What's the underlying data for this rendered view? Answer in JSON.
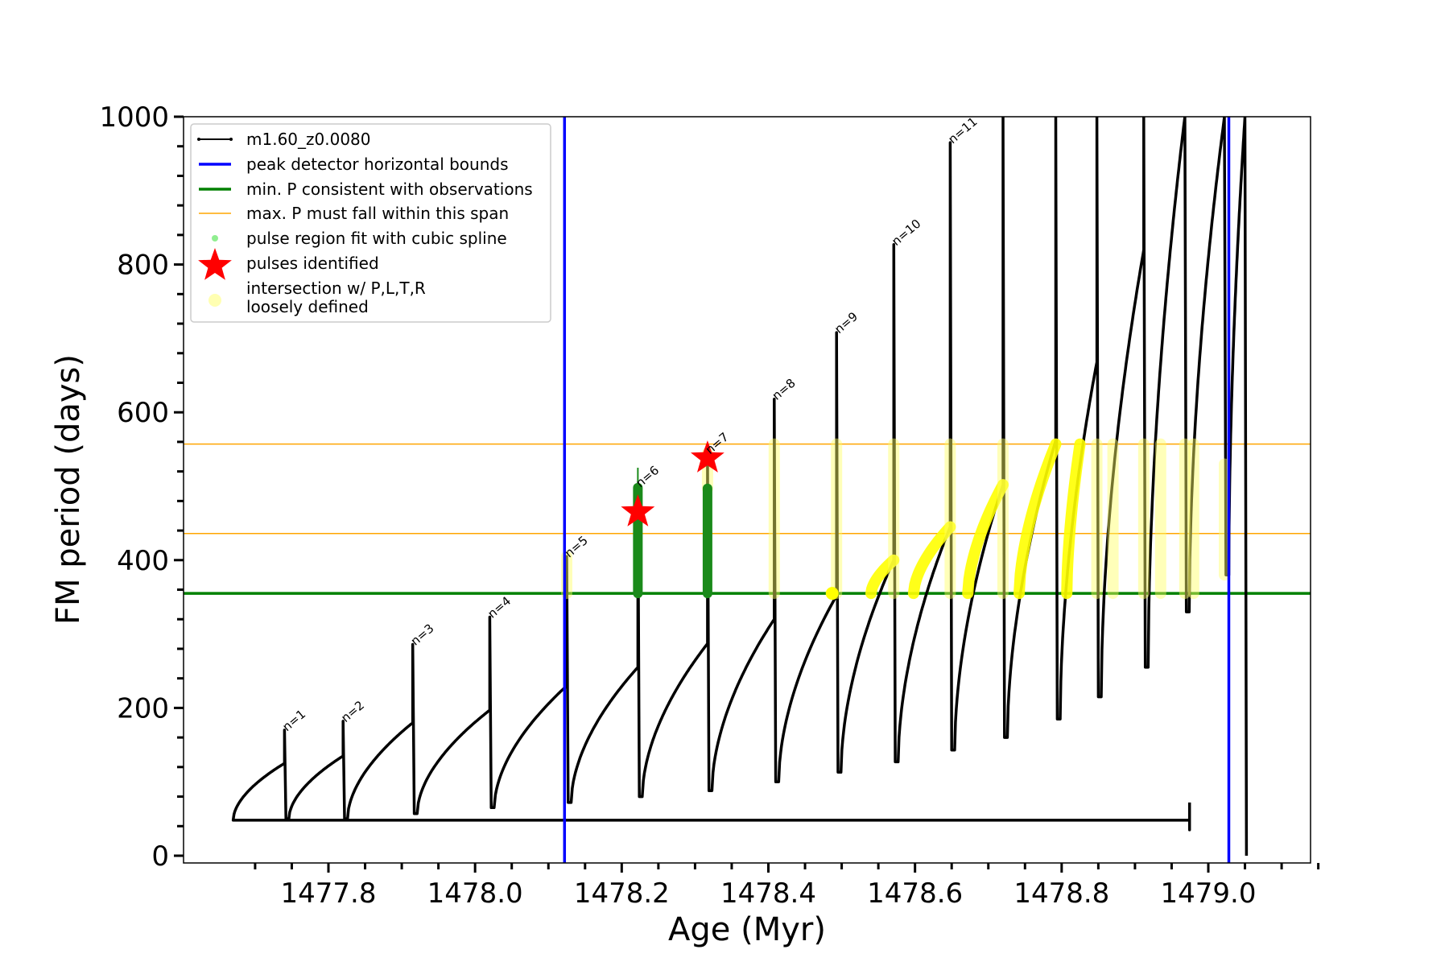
{
  "chart_data": {
    "type": "line",
    "xlabel": "Age (Myr)",
    "ylabel": "FM period (days)",
    "xlim": [
      1477.6,
      1479.12
    ],
    "ylim": [
      0,
      1000
    ],
    "xticks": [
      1477.8,
      1478.0,
      1478.2,
      1478.4,
      1478.6,
      1478.8,
      1479.0
    ],
    "xtick_labels": [
      "1477.8",
      "1478.0",
      "1478.2",
      "1478.4",
      "1478.6",
      "1478.8",
      "1479.0"
    ],
    "yticks": [
      0,
      200,
      400,
      600,
      800,
      1000
    ],
    "ytick_labels": [
      "0",
      "200",
      "400",
      "600",
      "800",
      "1000"
    ],
    "grid": false,
    "legend_position": "upper-left",
    "legend": [
      {
        "label": "m1.60_z0.0080",
        "kind": "line-marker",
        "color": "#000000"
      },
      {
        "label": "peak detector horizontal bounds",
        "kind": "line",
        "color": "#0000ff"
      },
      {
        "label": "min. P consistent with observations",
        "kind": "line",
        "color": "#008000"
      },
      {
        "label": "max. P must fall within this span",
        "kind": "thin-line",
        "color": "#ffa500"
      },
      {
        "label": "pulse region fit with cubic spline",
        "kind": "dot",
        "color": "#90ee90"
      },
      {
        "label": "pulses identified",
        "kind": "star",
        "color": "#ff0000"
      },
      {
        "label": "intersection w/ P,L,T,R",
        "label2": "loosely defined",
        "kind": "circle",
        "color": "#ffff66"
      }
    ],
    "vlines": [
      {
        "x": 1478.122,
        "color": "#0000ff"
      },
      {
        "x": 1479.028,
        "color": "#0000ff"
      }
    ],
    "hlines": [
      {
        "y": 355,
        "color": "#008000",
        "width": 3.5
      },
      {
        "y": 436,
        "color": "#ffa500",
        "width": 1.5
      },
      {
        "y": 557,
        "color": "#ffa500",
        "width": 1.5
      }
    ],
    "pulses": [
      {
        "n": "n=1",
        "x": 1477.74,
        "ymin": 50,
        "ymax": 170,
        "prev": 125
      },
      {
        "n": "n=2",
        "x": 1477.82,
        "ymin": 50,
        "ymax": 182,
        "prev": 135
      },
      {
        "n": "n=3",
        "x": 1477.915,
        "ymin": 57,
        "ymax": 286,
        "prev": 180
      },
      {
        "n": "n=4",
        "x": 1478.02,
        "ymin": 65,
        "ymax": 323,
        "prev": 197
      },
      {
        "n": "n=5",
        "x": 1478.125,
        "ymin": 72,
        "ymax": 405,
        "prev": 230
      },
      {
        "n": "n=6",
        "x": 1478.222,
        "ymin": 80,
        "ymax": 500,
        "prev": 255
      },
      {
        "n": "n=7",
        "x": 1478.317,
        "ymin": 88,
        "ymax": 545,
        "prev": 287
      },
      {
        "n": "n=8",
        "x": 1478.408,
        "ymin": 100,
        "ymax": 618,
        "prev": 320
      },
      {
        "n": "n=9",
        "x": 1478.493,
        "ymin": 113,
        "ymax": 708,
        "prev": 352
      },
      {
        "n": "n=10",
        "x": 1478.571,
        "ymin": 127,
        "ymax": 827,
        "prev": 400
      },
      {
        "n": "n=11",
        "x": 1478.648,
        "ymin": 143,
        "ymax": 965,
        "prev": 445
      },
      {
        "n": "",
        "x": 1478.72,
        "ymin": 160,
        "ymax": 1000,
        "prev": 502
      },
      {
        "n": "",
        "x": 1478.792,
        "ymin": 185,
        "ymax": 1000,
        "prev": 562
      },
      {
        "n": "",
        "x": 1478.848,
        "ymin": 215,
        "ymax": 1000,
        "prev": 668
      },
      {
        "n": "",
        "x": 1478.912,
        "ymin": 255,
        "ymax": 1000,
        "prev": 820
      },
      {
        "n": "",
        "x": 1478.968,
        "ymin": 330,
        "ymax": 1000,
        "prev": 1000
      },
      {
        "n": "",
        "x": 1479.022,
        "ymin": 380,
        "ymax": 1000,
        "prev": 1000
      },
      {
        "n": "",
        "x": 1479.05,
        "ymin": 0,
        "ymax": 1000,
        "prev": 1000
      }
    ],
    "series_start": {
      "x": 1477.67,
      "y": 48
    },
    "spline_regions": [
      {
        "x": 1478.222,
        "ymin": 355,
        "ymax": 498
      },
      {
        "x": 1478.317,
        "ymin": 355,
        "ymax": 497
      }
    ],
    "stars": [
      {
        "x": 1478.222,
        "y": 465
      },
      {
        "x": 1478.317,
        "y": 538
      }
    ],
    "yellow_vertical": [
      {
        "x": 1478.125,
        "ymin": 355,
        "ymax": 405
      },
      {
        "x": 1478.317,
        "ymin": 497,
        "ymax": 545
      },
      {
        "x": 1478.408,
        "ymin": 355,
        "ymax": 557
      },
      {
        "x": 1478.493,
        "ymin": 355,
        "ymax": 557
      },
      {
        "x": 1478.571,
        "ymin": 355,
        "ymax": 557
      },
      {
        "x": 1478.648,
        "ymin": 355,
        "ymax": 557
      },
      {
        "x": 1478.72,
        "ymin": 355,
        "ymax": 557
      },
      {
        "x": 1478.848,
        "ymin": 355,
        "ymax": 557
      },
      {
        "x": 1478.87,
        "ymin": 355,
        "ymax": 557
      },
      {
        "x": 1478.912,
        "ymin": 355,
        "ymax": 557
      },
      {
        "x": 1478.935,
        "ymin": 355,
        "ymax": 557
      },
      {
        "x": 1478.968,
        "ymin": 355,
        "ymax": 557
      },
      {
        "x": 1478.98,
        "ymin": 355,
        "ymax": 557
      },
      {
        "x": 1479.022,
        "ymin": 380,
        "ymax": 530
      }
    ],
    "yellow_arcs": [
      {
        "x0": 1478.54,
        "x1": 1478.571,
        "y0": 355,
        "y1": 400
      },
      {
        "x0": 1478.598,
        "x1": 1478.648,
        "y0": 355,
        "y1": 445
      },
      {
        "x0": 1478.672,
        "x1": 1478.72,
        "y0": 355,
        "y1": 502
      },
      {
        "x0": 1478.742,
        "x1": 1478.792,
        "y0": 355,
        "y1": 557
      },
      {
        "x0": 1478.807,
        "x1": 1478.825,
        "y0": 355,
        "y1": 557
      }
    ],
    "yellow_points": [
      {
        "x": 1478.487,
        "y": 355
      }
    ]
  }
}
